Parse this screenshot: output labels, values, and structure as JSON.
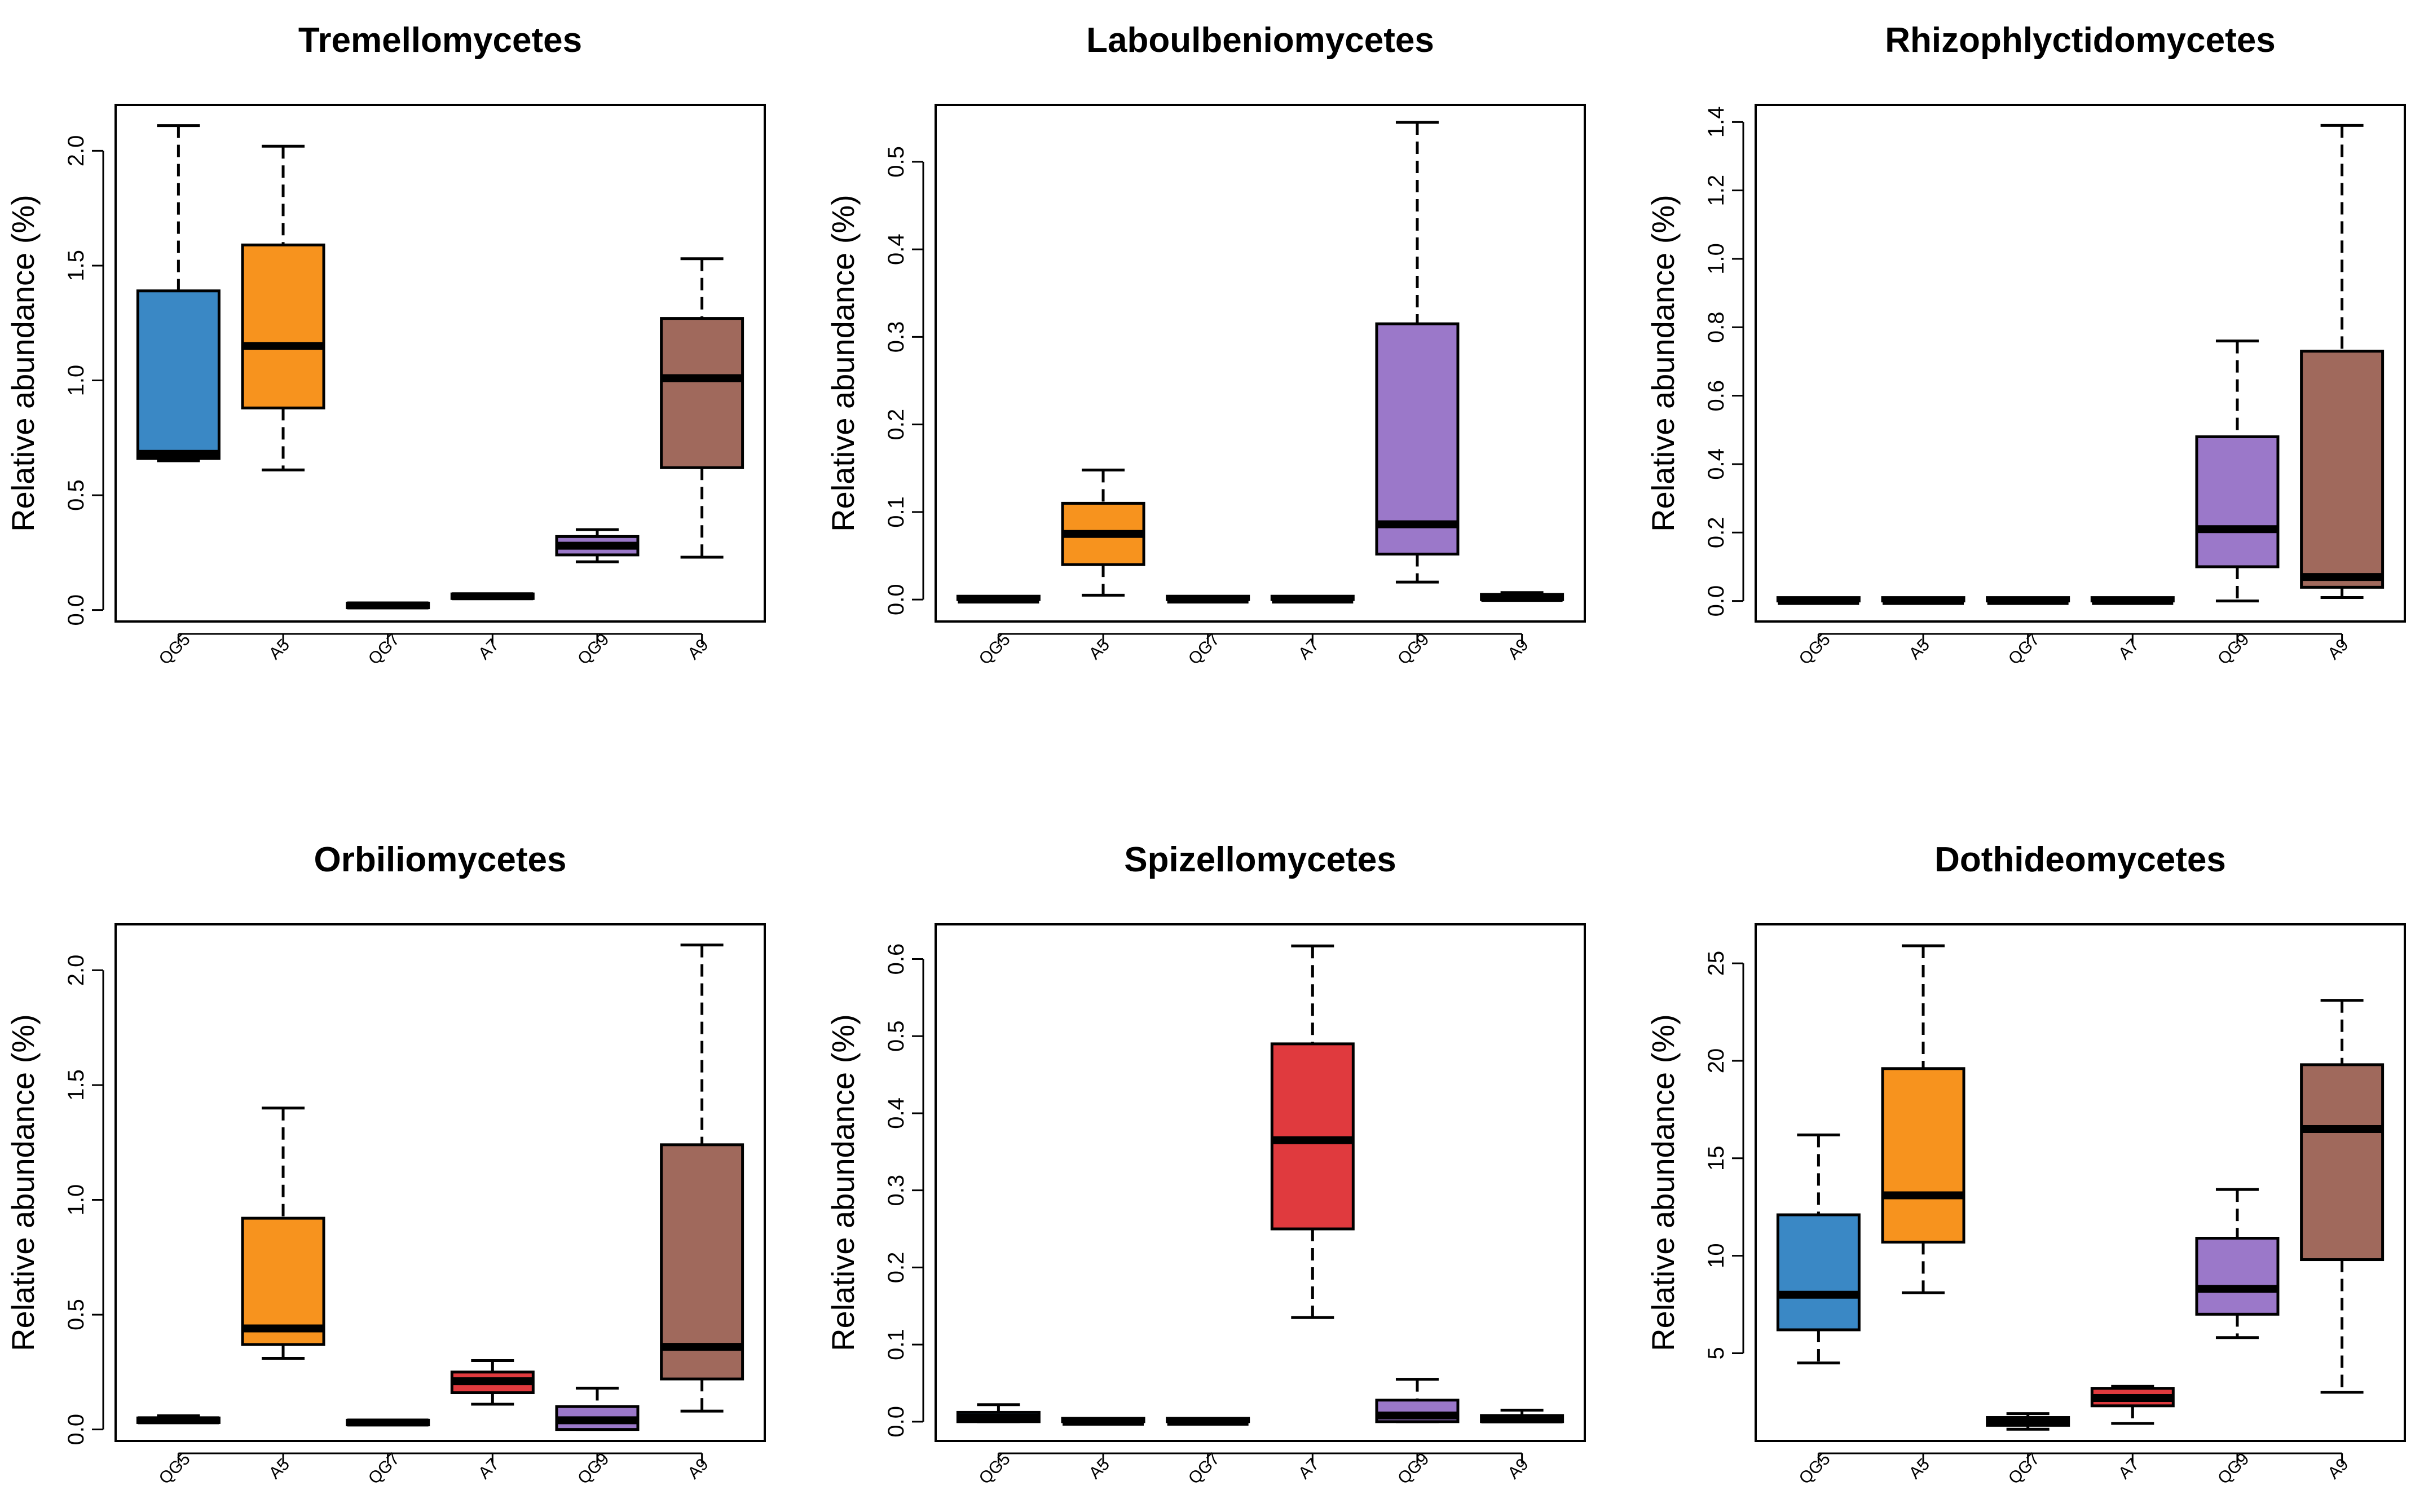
{
  "figure": {
    "ylabel": "Relative abundance (%)",
    "categories": [
      "QG5",
      "A5",
      "QG7",
      "A7",
      "QG9",
      "A9"
    ],
    "colors": {
      "QG5": "#3a88c5",
      "A5": "#f7931e",
      "QG7": "#e03a3e",
      "A7": "#e03a3e",
      "QG9": "#9b78c9",
      "A9": "#a0695c"
    }
  },
  "chart_data": [
    {
      "type": "boxplot",
      "title": "Tremellomycetes",
      "ylabel": "Relative abundance (%)",
      "categories": [
        "QG5",
        "A5",
        "QG7",
        "A7",
        "QG9",
        "A9"
      ],
      "yticks": [
        0.0,
        0.5,
        1.0,
        1.5,
        2.0
      ],
      "ytick_labels": [
        "0.0",
        "0.5",
        "1.0",
        "1.5",
        "2.0"
      ],
      "ylim": [
        -0.05,
        2.2
      ],
      "boxes": [
        {
          "category": "QG5",
          "min": 0.65,
          "q1": 0.66,
          "median": 0.68,
          "q3": 1.39,
          "max": 2.11
        },
        {
          "category": "A5",
          "min": 0.61,
          "q1": 0.88,
          "median": 1.15,
          "q3": 1.59,
          "max": 2.02
        },
        {
          "category": "QG7",
          "min": 0.01,
          "q1": 0.01,
          "median": 0.02,
          "q3": 0.03,
          "max": 0.03
        },
        {
          "category": "A7",
          "min": 0.05,
          "q1": 0.05,
          "median": 0.06,
          "q3": 0.07,
          "max": 0.07
        },
        {
          "category": "QG9",
          "min": 0.21,
          "q1": 0.24,
          "median": 0.28,
          "q3": 0.32,
          "max": 0.35
        },
        {
          "category": "A9",
          "min": 0.23,
          "q1": 0.62,
          "median": 1.01,
          "q3": 1.27,
          "max": 1.53
        }
      ]
    },
    {
      "type": "boxplot",
      "title": "Laboulbeniomycetes",
      "ylabel": "Relative abundance (%)",
      "categories": [
        "QG5",
        "A5",
        "QG7",
        "A7",
        "QG9",
        "A9"
      ],
      "yticks": [
        0.0,
        0.1,
        0.2,
        0.3,
        0.4,
        0.5
      ],
      "ytick_labels": [
        "0.0",
        "0.1",
        "0.2",
        "0.3",
        "0.4",
        "0.5"
      ],
      "ylim": [
        -0.025,
        0.565
      ],
      "boxes": [
        {
          "category": "QG5",
          "min": 0.0,
          "q1": 0.0,
          "median": 0.0,
          "q3": 0.0,
          "max": 0.0
        },
        {
          "category": "A5",
          "min": 0.005,
          "q1": 0.04,
          "median": 0.075,
          "q3": 0.11,
          "max": 0.148
        },
        {
          "category": "QG7",
          "min": 0.0,
          "q1": 0.0,
          "median": 0.0,
          "q3": 0.0,
          "max": 0.0
        },
        {
          "category": "A7",
          "min": 0.0,
          "q1": 0.0,
          "median": 0.0,
          "q3": 0.0,
          "max": 0.0
        },
        {
          "category": "QG9",
          "min": 0.02,
          "q1": 0.052,
          "median": 0.086,
          "q3": 0.315,
          "max": 0.545
        },
        {
          "category": "A9",
          "min": 0.0,
          "q1": 0.0,
          "median": 0.002,
          "q3": 0.006,
          "max": 0.008
        }
      ]
    },
    {
      "type": "boxplot",
      "title": "Rhizophlyctidomycetes",
      "ylabel": "Relative abundance (%)",
      "categories": [
        "QG5",
        "A5",
        "QG7",
        "A7",
        "QG9",
        "A9"
      ],
      "yticks": [
        0.0,
        0.2,
        0.4,
        0.6,
        0.8,
        1.0,
        1.2,
        1.4
      ],
      "ytick_labels": [
        "0.0",
        "0.2",
        "0.4",
        "0.6",
        "0.8",
        "1.0",
        "1.2",
        "1.4"
      ],
      "ylim": [
        -0.06,
        1.45
      ],
      "boxes": [
        {
          "category": "QG5",
          "min": 0.0,
          "q1": 0.0,
          "median": 0.0,
          "q3": 0.0,
          "max": 0.0
        },
        {
          "category": "A5",
          "min": 0.0,
          "q1": 0.0,
          "median": 0.0,
          "q3": 0.0,
          "max": 0.0
        },
        {
          "category": "QG7",
          "min": 0.0,
          "q1": 0.0,
          "median": 0.0,
          "q3": 0.0,
          "max": 0.0
        },
        {
          "category": "A7",
          "min": 0.0,
          "q1": 0.0,
          "median": 0.0,
          "q3": 0.0,
          "max": 0.0
        },
        {
          "category": "QG9",
          "min": 0.0,
          "q1": 0.1,
          "median": 0.21,
          "q3": 0.48,
          "max": 0.76
        },
        {
          "category": "A9",
          "min": 0.01,
          "q1": 0.04,
          "median": 0.07,
          "q3": 0.73,
          "max": 1.39
        }
      ]
    },
    {
      "type": "boxplot",
      "title": "Orbiliomycetes",
      "ylabel": "Relative abundance (%)",
      "categories": [
        "QG5",
        "A5",
        "QG7",
        "A7",
        "QG9",
        "A9"
      ],
      "yticks": [
        0.0,
        0.5,
        1.0,
        1.5,
        2.0
      ],
      "ytick_labels": [
        "0.0",
        "0.5",
        "1.0",
        "1.5",
        "2.0"
      ],
      "ylim": [
        -0.05,
        2.2
      ],
      "boxes": [
        {
          "category": "QG5",
          "min": 0.03,
          "q1": 0.03,
          "median": 0.04,
          "q3": 0.05,
          "max": 0.06
        },
        {
          "category": "A5",
          "min": 0.31,
          "q1": 0.37,
          "median": 0.44,
          "q3": 0.92,
          "max": 1.4
        },
        {
          "category": "QG7",
          "min": 0.02,
          "q1": 0.02,
          "median": 0.03,
          "q3": 0.04,
          "max": 0.04
        },
        {
          "category": "A7",
          "min": 0.11,
          "q1": 0.16,
          "median": 0.21,
          "q3": 0.25,
          "max": 0.3
        },
        {
          "category": "QG9",
          "min": 0.0,
          "q1": 0.0,
          "median": 0.04,
          "q3": 0.1,
          "max": 0.18
        },
        {
          "category": "A9",
          "min": 0.08,
          "q1": 0.22,
          "median": 0.36,
          "q3": 1.24,
          "max": 2.11
        }
      ]
    },
    {
      "type": "boxplot",
      "title": "Spizellomycetes",
      "ylabel": "Relative abundance (%)",
      "categories": [
        "QG5",
        "A5",
        "QG7",
        "A7",
        "QG9",
        "A9"
      ],
      "yticks": [
        0.0,
        0.1,
        0.2,
        0.3,
        0.4,
        0.5,
        0.6
      ],
      "ytick_labels": [
        "0.0",
        "0.1",
        "0.2",
        "0.3",
        "0.4",
        "0.5",
        "0.6"
      ],
      "ylim": [
        -0.025,
        0.645
      ],
      "boxes": [
        {
          "category": "QG5",
          "min": 0.0,
          "q1": 0.0,
          "median": 0.005,
          "q3": 0.012,
          "max": 0.022
        },
        {
          "category": "A5",
          "min": 0.0,
          "q1": 0.0,
          "median": 0.0,
          "q3": 0.0,
          "max": 0.0
        },
        {
          "category": "QG7",
          "min": 0.0,
          "q1": 0.0,
          "median": 0.0,
          "q3": 0.0,
          "max": 0.0
        },
        {
          "category": "A7",
          "min": 0.135,
          "q1": 0.25,
          "median": 0.365,
          "q3": 0.49,
          "max": 0.617
        },
        {
          "category": "QG9",
          "min": 0.0,
          "q1": 0.0,
          "median": 0.008,
          "q3": 0.028,
          "max": 0.055
        },
        {
          "category": "A9",
          "min": 0.0,
          "q1": 0.0,
          "median": 0.003,
          "q3": 0.008,
          "max": 0.015
        }
      ]
    },
    {
      "type": "boxplot",
      "title": "Dothideomycetes",
      "ylabel": "Relative abundance (%)",
      "categories": [
        "QG5",
        "A5",
        "QG7",
        "A7",
        "QG9",
        "A9"
      ],
      "yticks": [
        5,
        10,
        15,
        20,
        25
      ],
      "ytick_labels": [
        "5",
        "10",
        "15",
        "20",
        "25"
      ],
      "ylim": [
        0.5,
        27
      ],
      "boxes": [
        {
          "category": "QG5",
          "min": 4.5,
          "q1": 6.2,
          "median": 8.0,
          "q3": 12.1,
          "max": 16.2
        },
        {
          "category": "A5",
          "min": 8.1,
          "q1": 10.7,
          "median": 13.1,
          "q3": 19.6,
          "max": 25.9
        },
        {
          "category": "QG7",
          "min": 1.1,
          "q1": 1.3,
          "median": 1.5,
          "q3": 1.7,
          "max": 1.9
        },
        {
          "category": "A7",
          "min": 1.4,
          "q1": 2.3,
          "median": 2.7,
          "q3": 3.2,
          "max": 3.3
        },
        {
          "category": "QG9",
          "min": 5.8,
          "q1": 7.0,
          "median": 8.3,
          "q3": 10.9,
          "max": 13.4
        },
        {
          "category": "A9",
          "min": 3.0,
          "q1": 9.8,
          "median": 16.5,
          "q3": 19.8,
          "max": 23.1
        }
      ]
    }
  ]
}
